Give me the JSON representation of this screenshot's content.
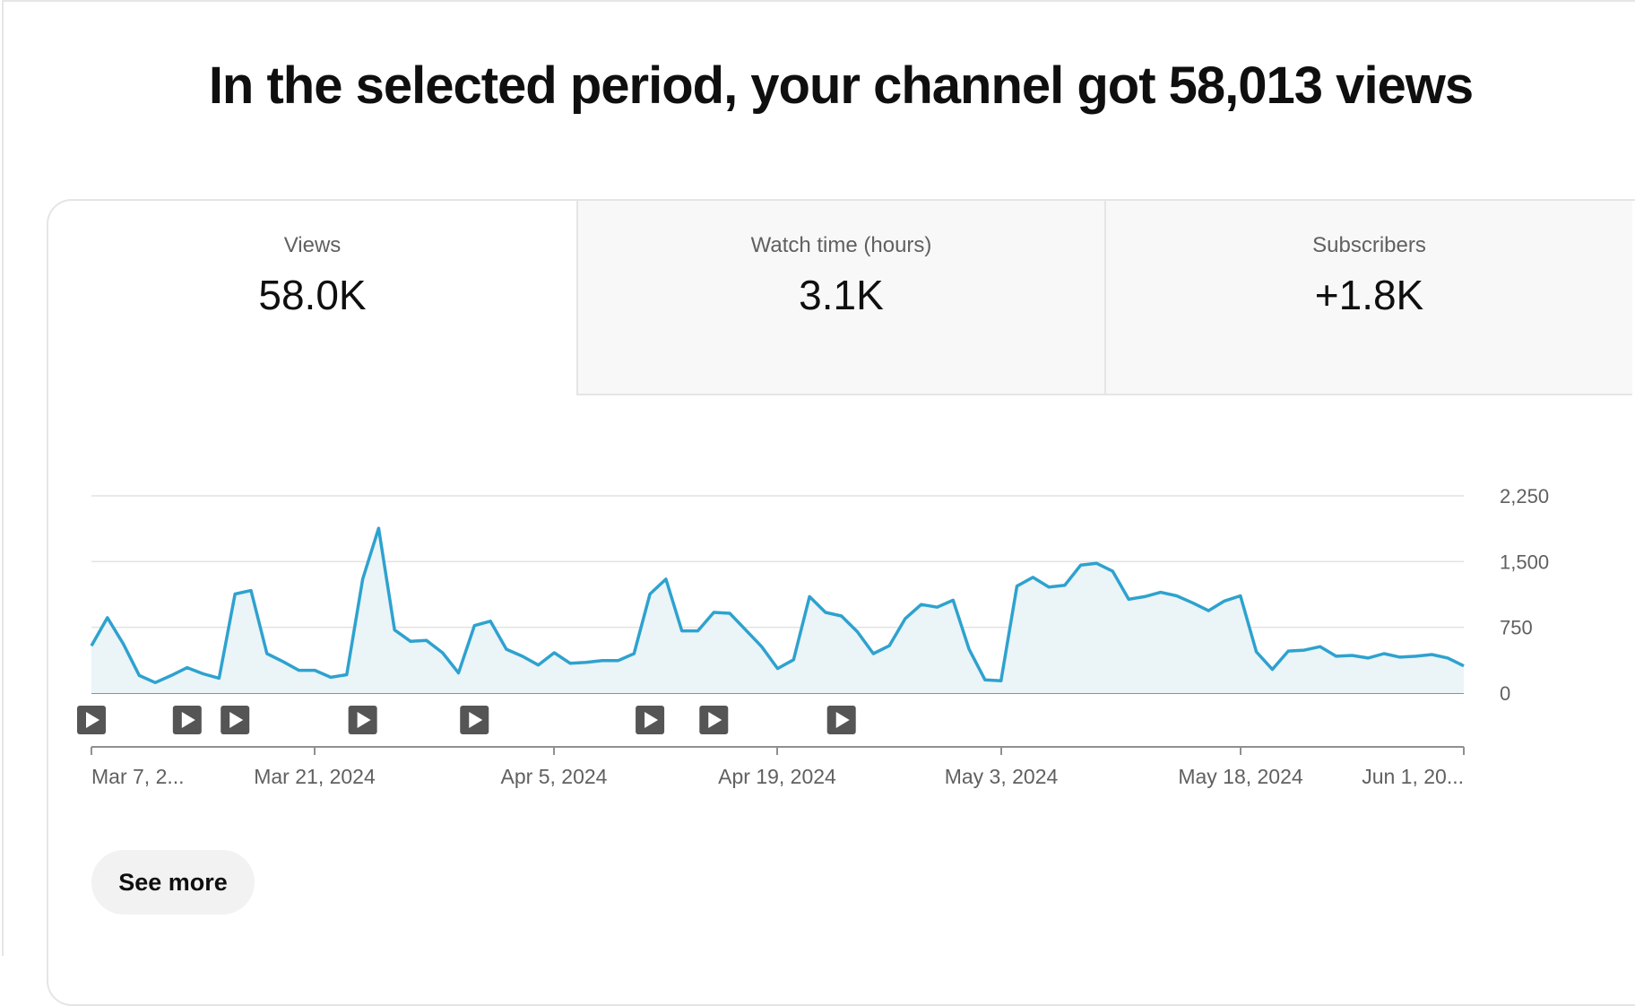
{
  "headline": "In the selected period, your channel got 58,013 views",
  "tabs": [
    {
      "label": "Views",
      "value": "58.0K",
      "selected": true
    },
    {
      "label": "Watch time (hours)",
      "value": "3.1K",
      "selected": false
    },
    {
      "label": "Subscribers",
      "value": "+1.8K",
      "selected": false
    }
  ],
  "chart_data": {
    "type": "area",
    "series": [
      {
        "values": [
          540,
          860,
          560,
          200,
          120,
          200,
          290,
          220,
          170,
          1130,
          1170,
          450,
          360,
          260,
          260,
          180,
          210,
          1300,
          1880,
          720,
          590,
          600,
          460,
          230,
          770,
          820,
          500,
          420,
          320,
          460,
          340,
          350,
          370,
          370,
          450,
          1130,
          1300,
          710,
          710,
          920,
          910,
          720,
          530,
          280,
          380,
          1100,
          920,
          880,
          700,
          450,
          540,
          850,
          1010,
          980,
          1060,
          500,
          150,
          140,
          1220,
          1320,
          1210,
          1230,
          1460,
          1480,
          1390,
          1070,
          1100,
          1150,
          1110,
          1030,
          940,
          1050,
          1110,
          470,
          270,
          480,
          490,
          530,
          420,
          430,
          400,
          450,
          410,
          420,
          440,
          400,
          310
        ]
      }
    ],
    "x_tick_labels": [
      "Mar 7, 2...",
      "Mar 21, 2024",
      "Apr 5, 2024",
      "Apr 19, 2024",
      "May 3, 2024",
      "May 18, 2024",
      "Jun 1, 20..."
    ],
    "y_tick_labels": [
      "2,250",
      "1,500",
      "750",
      "0"
    ],
    "y_ticks": [
      2250,
      1500,
      750,
      0
    ],
    "ylim": [
      0,
      2250
    ],
    "video_markers": [
      0,
      6,
      9,
      17,
      24,
      35,
      39,
      47
    ],
    "line_color": "#2ea2cf",
    "fill_color": "#ebf4f7",
    "grid": true,
    "legend": "none"
  },
  "see_more_label": "See more"
}
